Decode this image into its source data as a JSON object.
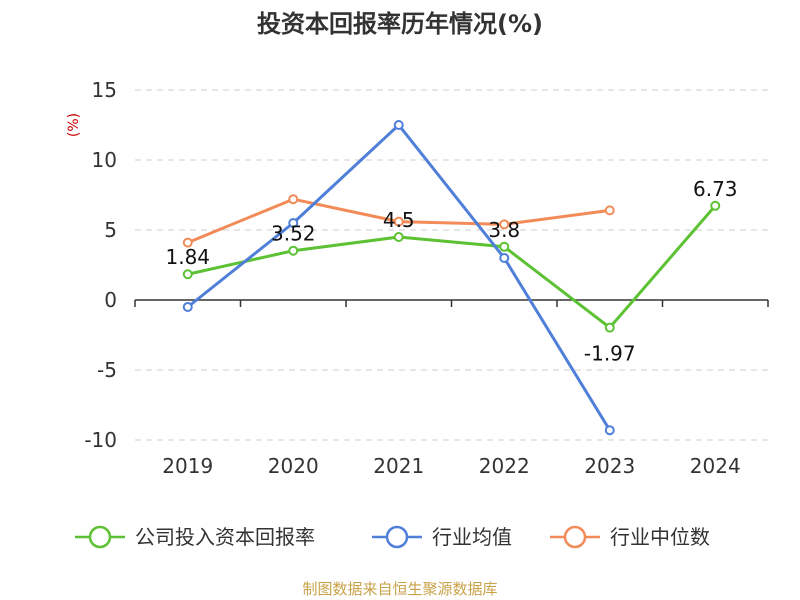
{
  "title": "投资本回报率历年情况(%)",
  "source": "制图数据来自恒生聚源数据库",
  "chart_data": {
    "type": "line",
    "unit_label": "(%)",
    "categories": [
      "2019",
      "2020",
      "2021",
      "2022",
      "2023",
      "2024"
    ],
    "ylim": [
      -10,
      15
    ],
    "yticks": [
      15,
      10,
      5,
      0,
      -5,
      -10
    ],
    "ytick_labels": [
      "15",
      "10",
      "5",
      "0",
      "-5",
      "-10"
    ],
    "grid": true,
    "legend_position": "bottom",
    "series": [
      {
        "name": "公司投入资本回报率",
        "color": "#5cc233",
        "values": [
          1.84,
          3.52,
          4.5,
          3.8,
          -1.97,
          6.73
        ],
        "labels": [
          "1.84",
          "3.52",
          "4.5",
          "3.8",
          "-1.97",
          "6.73"
        ]
      },
      {
        "name": "行业均值",
        "color": "#4f7fd9",
        "values": [
          -0.5,
          5.5,
          12.5,
          3.0,
          -9.3,
          null
        ]
      },
      {
        "name": "行业中位数",
        "color": "#f28b58",
        "values": [
          4.1,
          7.2,
          5.6,
          5.4,
          6.4,
          null
        ]
      }
    ]
  }
}
